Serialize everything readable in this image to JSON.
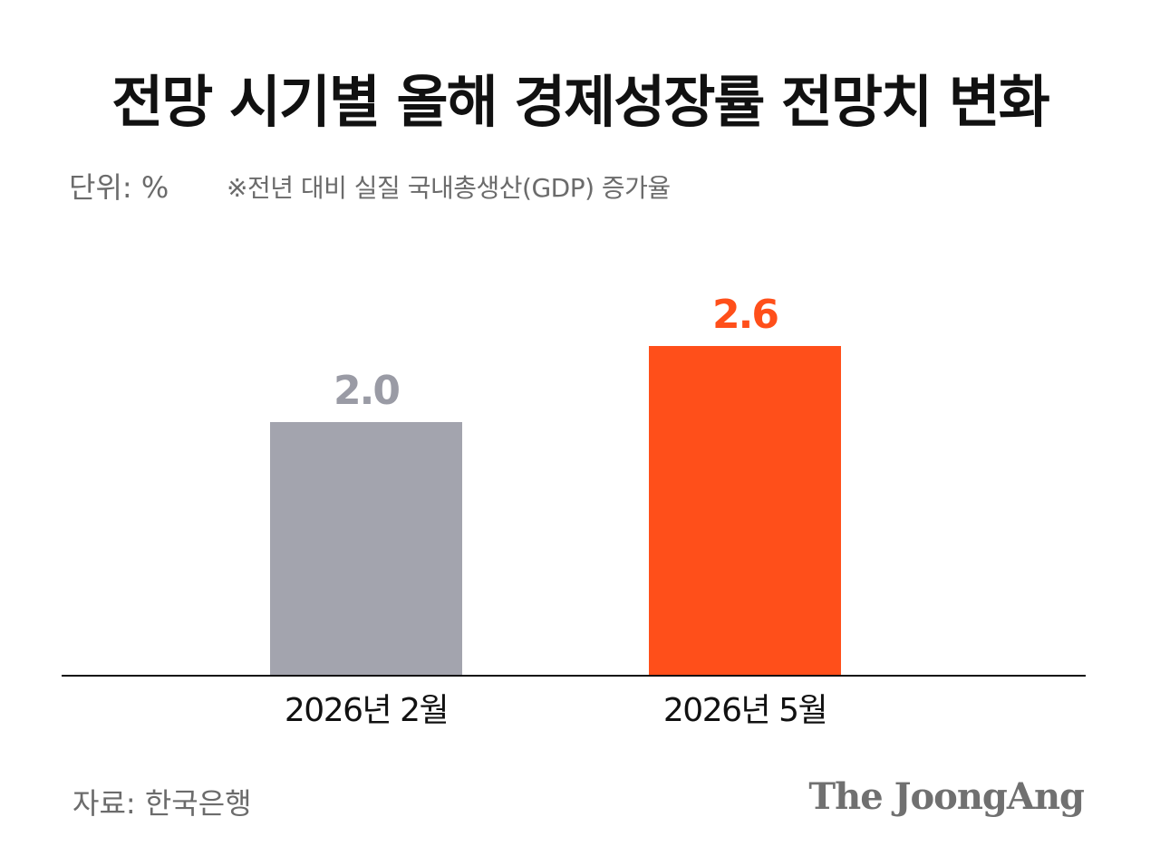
{
  "header": {
    "title": "전망 시기별 올해 경제성장률 전망치 변화",
    "unit": "단위: %",
    "note": "※전년 대비 실질 국내총생산(GDP) 증가율"
  },
  "footer": {
    "source": "자료: 한국은행",
    "brand": "The JoongAng"
  },
  "chart_data": {
    "type": "bar",
    "categories": [
      "2026년 2월",
      "2026년 5월"
    ],
    "values": [
      2.0,
      2.6
    ],
    "value_labels": [
      "2.0",
      "2.6"
    ],
    "colors": [
      "#a3a4ae",
      "#ff4f1a"
    ],
    "label_colors": [
      "#9a9ba5",
      "#ff4f1a"
    ],
    "ylim": [
      0,
      2.9
    ],
    "grid": false,
    "legend": "none",
    "baseline_color": "#111111"
  }
}
